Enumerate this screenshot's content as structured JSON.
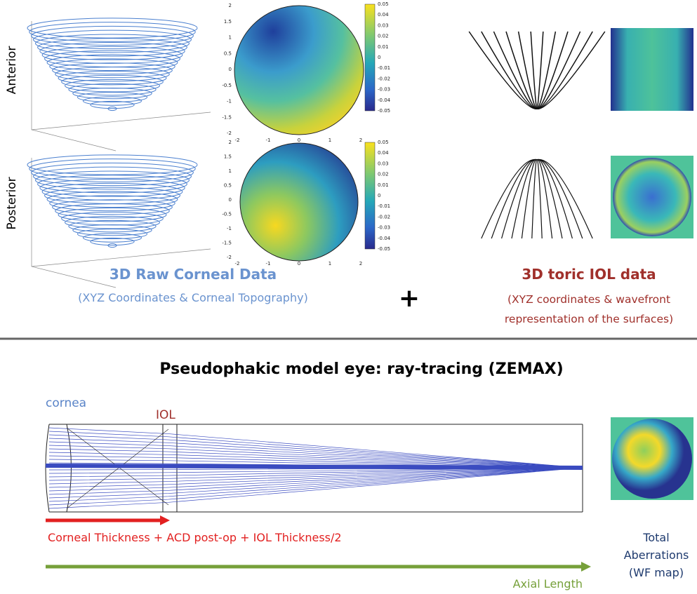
{
  "row_labels": [
    "Anterior",
    "Posterior"
  ],
  "topography": {
    "x_ticks": [
      "-2",
      "-1",
      "0",
      "1",
      "2"
    ],
    "y_ticks": [
      "2",
      "1.5",
      "1",
      "0.5",
      "0",
      "-0.5",
      "-1",
      "-1.5",
      "-2"
    ],
    "colorbar_ticks": [
      "0.05",
      "0.04",
      "0.03",
      "0.02",
      "0.01",
      "0",
      "-0.01",
      "-0.02",
      "-0.03",
      "-0.04",
      "-0.05"
    ]
  },
  "cornea_caption": {
    "title": "3D Raw Corneal Data",
    "subtitle": "(XYZ Coordinates & Corneal Topography)"
  },
  "plus": "+",
  "iol_caption": {
    "title": "3D toric IOL data",
    "subtitle_lines": [
      "(XYZ coordinates & wavefront",
      "representation of the surfaces)"
    ]
  },
  "model": {
    "title": "Pseudophakic model eye: ray-tracing (ZEMAX)",
    "cornea_label": "cornea",
    "iol_label": "IOL",
    "red_arrow_label": "Corneal Thickness + ACD post-op + IOL Thickness/2",
    "green_arrow_label": "Axial Length",
    "output_label_lines": [
      "Total",
      "Aberrations",
      "(WF map)"
    ]
  }
}
